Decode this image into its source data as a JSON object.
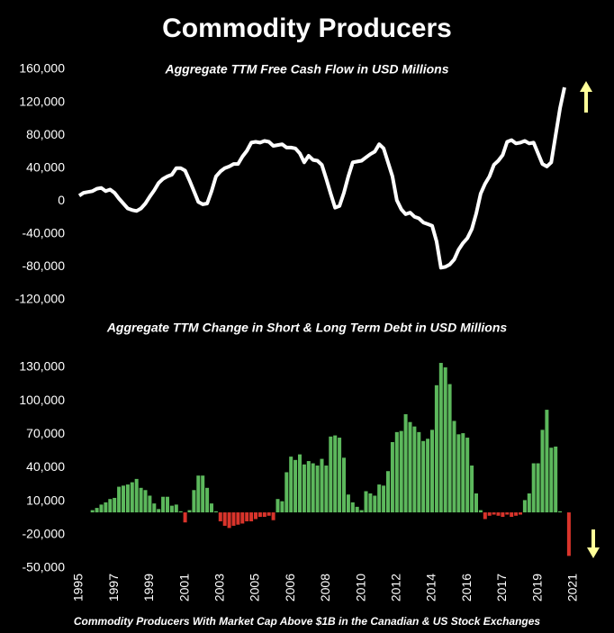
{
  "title": "Commodity Producers",
  "footnote": "Commodity Producers With Market Cap Above $1B in the Canadian & US Stock Exchanges",
  "chart_data": [
    {
      "type": "line",
      "title": "Aggregate TTM Free Cash Flow in USD Millions",
      "color": "#ffffff",
      "ylim": [
        -120000,
        160000
      ],
      "yticks": [
        {
          "value": 160000,
          "label": "160,000"
        },
        {
          "value": 120000,
          "label": "120,000"
        },
        {
          "value": 80000,
          "label": "80,000"
        },
        {
          "value": 40000,
          "label": "40,000"
        },
        0,
        {
          "value": -40000,
          "label": "-40,000"
        },
        {
          "value": -80000,
          "label": "-80,000"
        },
        {
          "value": -120000,
          "label": "-120,000"
        }
      ],
      "values": [
        6500,
        10000,
        11000,
        12000,
        15000,
        16000,
        12000,
        14000,
        10000,
        3000,
        -3000,
        -9000,
        -11000,
        -12000,
        -9000,
        -3000,
        5500,
        13000,
        22000,
        27000,
        30000,
        32000,
        40000,
        40000,
        37000,
        25000,
        12000,
        -1000,
        -4000,
        -3000,
        12000,
        30000,
        36000,
        40000,
        42000,
        45000,
        45000,
        54000,
        61000,
        71000,
        72000,
        71000,
        73000,
        72000,
        67000,
        68000,
        69000,
        65000,
        65000,
        64000,
        58000,
        47000,
        55000,
        50000,
        49000,
        44000,
        27000,
        9000,
        -8000,
        -6000,
        10000,
        30000,
        47000,
        48000,
        49000,
        53000,
        57000,
        60000,
        69000,
        64000,
        47000,
        30000,
        1000,
        -10000,
        -16000,
        -14000,
        -19000,
        -21000,
        -26000,
        -28000,
        -30000,
        -49000,
        -81000,
        -80000,
        -77000,
        -71000,
        -59000,
        -51000,
        -45000,
        -34000,
        -15000,
        9000,
        21000,
        30000,
        44000,
        49000,
        56000,
        72000,
        74000,
        70000,
        71000,
        73000,
        70000,
        71000,
        58000,
        45000,
        42000,
        47000,
        80000,
        113000,
        138000,
        null,
        null
      ]
    },
    {
      "type": "bar",
      "title": "Aggregate TTM Change in Short & Long Term Debt in USD Millions",
      "color": "#5cb85c",
      "negative_color": "#d9342b",
      "ylim": [
        -50000,
        130000
      ],
      "yticks": [
        {
          "value": 130000,
          "label": "130,000"
        },
        {
          "value": 100000,
          "label": "100,000"
        },
        {
          "value": 70000,
          "label": "70,000"
        },
        {
          "value": 40000,
          "label": "40,000"
        },
        {
          "value": 10000,
          "label": "10,000"
        },
        {
          "value": -20000,
          "label": "-20,000"
        },
        {
          "value": -50000,
          "label": "-50,000"
        }
      ],
      "categories": [
        "1995",
        null,
        null,
        null,
        null,
        null,
        null,
        null,
        "1997",
        null,
        null,
        null,
        null,
        null,
        null,
        null,
        "1999",
        null,
        null,
        null,
        null,
        null,
        null,
        null,
        "2001",
        null,
        null,
        null,
        null,
        null,
        null,
        null,
        "2003",
        null,
        null,
        null,
        null,
        null,
        null,
        null,
        "2005",
        null,
        null,
        null,
        null,
        null,
        null,
        null,
        "2006",
        null,
        null,
        null,
        null,
        null,
        null,
        null,
        "2008",
        null,
        null,
        null,
        null,
        null,
        null,
        null,
        "2010",
        null,
        null,
        null,
        null,
        null,
        null,
        null,
        "2012",
        null,
        null,
        null,
        null,
        null,
        null,
        null,
        "2014",
        null,
        null,
        null,
        null,
        null,
        null,
        null,
        "2016",
        null,
        null,
        null,
        null,
        null,
        null,
        null,
        "2017",
        null,
        null,
        null,
        null,
        null,
        null,
        null,
        "2019",
        null,
        null,
        null,
        null,
        null,
        null,
        null,
        "2021"
      ],
      "values": [
        null,
        null,
        null,
        2000,
        4000,
        7000,
        9000,
        12000,
        13000,
        23000,
        24000,
        25000,
        27000,
        30000,
        22000,
        20000,
        15000,
        8000,
        3000,
        14000,
        14000,
        6000,
        7000,
        1000,
        -9000,
        2000,
        20000,
        33000,
        33000,
        22000,
        8000,
        1000,
        -8000,
        -12000,
        -14000,
        -12000,
        -11000,
        -10000,
        -8000,
        -8000,
        -6000,
        -4000,
        -4000,
        -3000,
        -7000,
        12000,
        10000,
        36000,
        50000,
        47000,
        52000,
        43000,
        46000,
        44000,
        42000,
        48000,
        42000,
        68000,
        69000,
        67000,
        49000,
        16000,
        9000,
        5000,
        2000,
        19000,
        17000,
        15000,
        25000,
        24000,
        37000,
        63000,
        72000,
        73000,
        88000,
        81000,
        77000,
        72000,
        64000,
        66000,
        74000,
        114000,
        134000,
        130000,
        115000,
        82000,
        70000,
        71000,
        67000,
        42000,
        17000,
        2000,
        -6000,
        -3000,
        -2000,
        -3000,
        -4000,
        -2000,
        -4000,
        -3000,
        -2000,
        11000,
        17000,
        44000,
        44000,
        74000,
        92000,
        58000,
        59000,
        1000,
        null,
        -39000,
        null
      ]
    }
  ]
}
